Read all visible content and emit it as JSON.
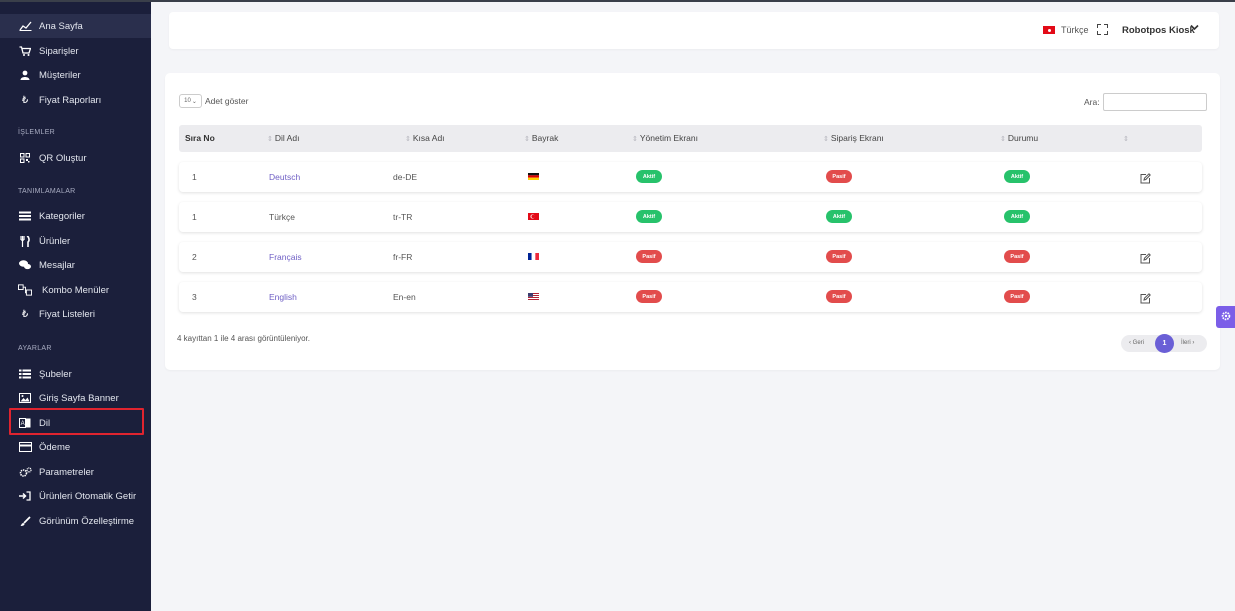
{
  "sidebar": {
    "items": [
      {
        "label": "Ana Sayfa",
        "icon": "chart-line-icon"
      },
      {
        "label": "Siparişler",
        "icon": "cart-icon"
      },
      {
        "label": "Müşteriler",
        "icon": "user-icon"
      },
      {
        "label": "Fiyat Raporları",
        "icon": "lira-icon"
      },
      {
        "label": "QR Oluştur",
        "icon": "qr-icon"
      },
      {
        "label": "Kategoriler",
        "icon": "list-icon"
      },
      {
        "label": "Ürünler",
        "icon": "utensils-icon"
      },
      {
        "label": "Mesajlar",
        "icon": "chat-icon"
      },
      {
        "label": "Kombo Menüler",
        "icon": "combo-icon"
      },
      {
        "label": "Fiyat Listeleri",
        "icon": "lira-icon"
      },
      {
        "label": "Şubeler",
        "icon": "list-icon"
      },
      {
        "label": "Giriş Sayfa Banner",
        "icon": "image-icon"
      },
      {
        "label": "Dil",
        "icon": "language-icon"
      },
      {
        "label": "Ödeme",
        "icon": "credit-card-icon"
      },
      {
        "label": "Parametreler",
        "icon": "gears-icon"
      },
      {
        "label": "Ürünleri Otomatik Getir",
        "icon": "sign-in-icon"
      },
      {
        "label": "Görünüm Özelleştirme",
        "icon": "brush-icon"
      }
    ],
    "sections": {
      "islemler": "İŞLEMLER",
      "tanimlamalar": "TANIMLAMALAR",
      "ayarlar": "AYARLAR"
    }
  },
  "header": {
    "language": "Türkçe",
    "user": "Robotpos Kiosk"
  },
  "table": {
    "length_value": "10",
    "length_label": "Adet göster",
    "search_label": "Ara:",
    "search_value": "",
    "columns": [
      "Sıra No",
      "Dil Adı",
      "Kısa Adı",
      "Bayrak",
      "Yönetim Ekranı",
      "Sipariş Ekranı",
      "Durumu",
      ""
    ],
    "rows": [
      {
        "no": "1",
        "name": "Deutsch",
        "short": "de-DE",
        "flag": "de-flag-icon",
        "admin": "Aktif",
        "order": "Pasif",
        "status": "Aktif",
        "editable": true,
        "link": true
      },
      {
        "no": "1",
        "name": "Türkçe",
        "short": "tr-TR",
        "flag": "tr-flag-icon",
        "admin": "Aktif",
        "order": "Aktif",
        "status": "Aktif",
        "editable": false,
        "link": false
      },
      {
        "no": "2",
        "name": "Français",
        "short": "fr-FR",
        "flag": "fr-flag-icon",
        "admin": "Pasif",
        "order": "Pasif",
        "status": "Pasif",
        "editable": true,
        "link": true
      },
      {
        "no": "3",
        "name": "English",
        "short": "En-en",
        "flag": "us-flag-icon",
        "admin": "Pasif",
        "order": "Pasif",
        "status": "Pasif",
        "editable": true,
        "link": true
      }
    ],
    "info": "4 kayıttan 1 ile 4 arası görüntüleniyor.",
    "pager": {
      "prev": "‹ Geri",
      "current": "1",
      "next": "İleri ›"
    }
  },
  "colors": {
    "accent": "#6a5fd6",
    "active": "#27c26b",
    "passive": "#e24c4c",
    "sidebar": "#1b1f3b"
  }
}
